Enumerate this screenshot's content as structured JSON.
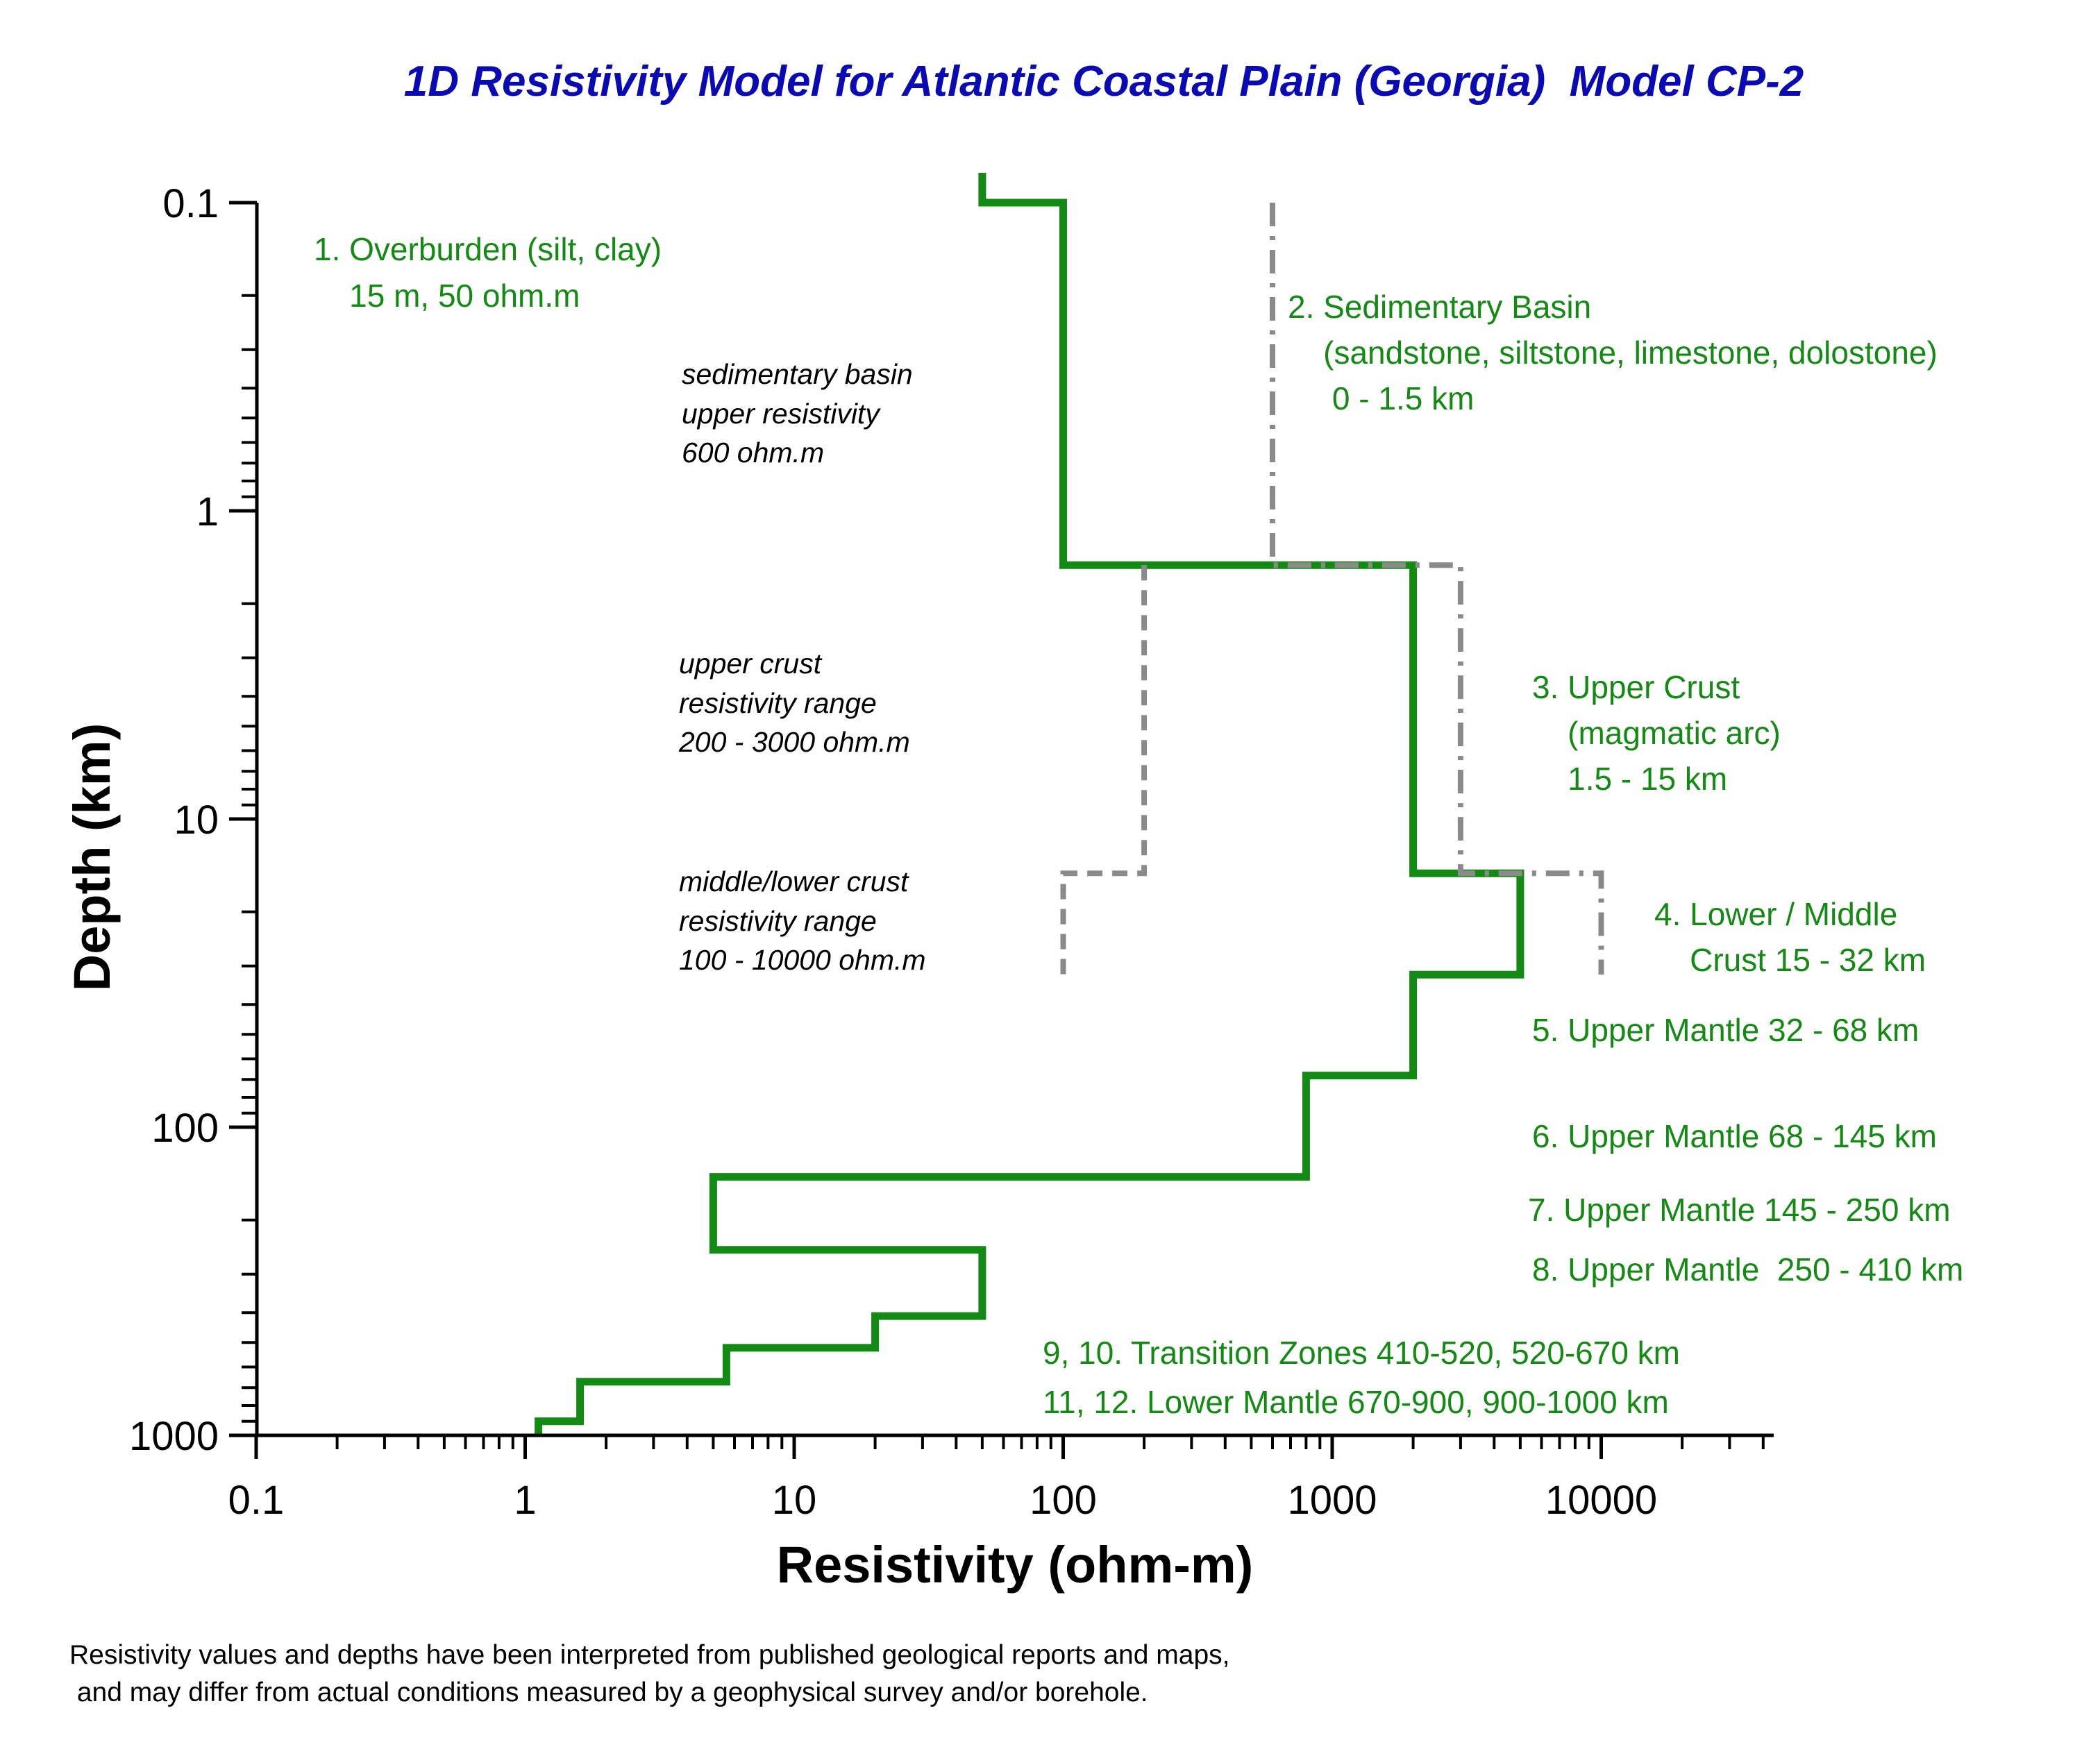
{
  "chart_data": {
    "type": "line",
    "title": "1D Resistivity Model for Atlantic Coastal Plain (Georgia)  Model CP-2",
    "xlabel": "Resistivity (ohm-m)",
    "ylabel": "Depth (km)",
    "x_scale": "log",
    "y_scale": "log",
    "y_inverted": true,
    "xlim": [
      0.1,
      50000
    ],
    "ylim": [
      0.1,
      1000
    ],
    "x_ticks": [
      "0.1",
      "1",
      "10",
      "100",
      "1000",
      "10000"
    ],
    "y_ticks": [
      "0.1",
      "1",
      "10",
      "100",
      "1000"
    ],
    "grid": false,
    "colors": {
      "model": "#138a13",
      "bounds": "#8a8a8a",
      "title": "#0a0ab4",
      "annotation": "#138a13"
    },
    "series": [
      {
        "style": "solid",
        "color": "#138a13",
        "x": [
          50,
          50,
          100,
          100,
          2000,
          2000,
          5000,
          5000,
          2000,
          2000,
          800,
          800,
          5,
          5,
          50,
          50,
          20,
          20,
          5.6,
          5.6,
          1.6,
          1.6,
          1.12,
          1.12
        ],
        "y": [
          0.08,
          0.1,
          0.1,
          1.5,
          1.5,
          15,
          15,
          32,
          32,
          68,
          68,
          145,
          145,
          250,
          250,
          410,
          410,
          520,
          520,
          670,
          670,
          900,
          900,
          1000
        ]
      },
      {
        "style": "dashdot",
        "color": "#8a8a8a",
        "x": [
          600,
          600,
          3000,
          3000,
          10000,
          10000
        ],
        "y": [
          0.1,
          1.5,
          1.5,
          15,
          15,
          32
        ]
      },
      {
        "style": "dashed",
        "color": "#8a8a8a",
        "x": [
          200,
          200,
          100,
          100
        ],
        "y": [
          1.5,
          15,
          15,
          32
        ]
      }
    ],
    "annotations": {
      "overburden": [
        "1. Overburden (silt, clay)",
        "    15 m, 50 ohm.m"
      ],
      "sed_basin": [
        "2. Sedimentary Basin",
        "    (sandstone, siltstone, limestone, dolostone)",
        "     0 - 1.5 km"
      ],
      "upper_crust": [
        "3. Upper Crust",
        "    (magmatic arc)",
        "    1.5 - 15 km"
      ],
      "lower_crust": [
        "4. Lower / Middle",
        "    Crust 15 - 32 km"
      ],
      "mantle_5": "5. Upper Mantle 32 - 68 km",
      "mantle_6": "6. Upper Mantle 68 - 145 km",
      "mantle_7": "7. Upper Mantle 145 - 250 km",
      "mantle_8": "8. Upper Mantle  250 - 410 km",
      "transition": "9, 10. Transition Zones 410-520, 520-670 km",
      "lower_mantle": "11, 12. Lower Mantle 670-900, 900-1000 km",
      "sed_note": [
        "sedimentary basin",
        "upper resistivity",
        "600 ohm.m"
      ],
      "crust_note": [
        "upper crust",
        "resistivity range",
        "200 - 3000 ohm.m"
      ],
      "mid_note": [
        "middle/lower crust",
        "resistivity range",
        "100 - 10000 ohm.m"
      ]
    }
  },
  "footnote": [
    "Resistivity values and depths have been interpreted from published geological reports and maps,",
    " and may differ from actual conditions measured by a geophysical survey and/or borehole."
  ]
}
